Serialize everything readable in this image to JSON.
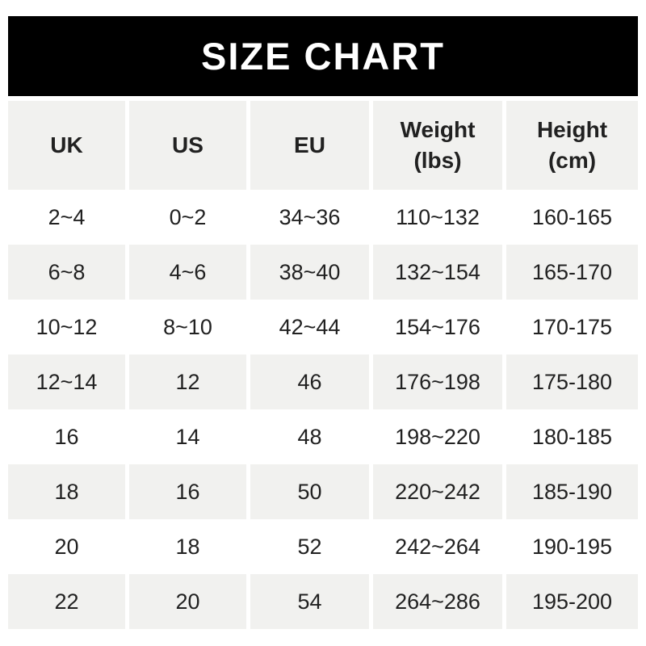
{
  "banner": {
    "title": "SIZE CHART",
    "bg_color": "#000000",
    "text_color": "#ffffff"
  },
  "table": {
    "stripe_color": "#f1f1ef",
    "text_color": "#212121",
    "columns": [
      {
        "key": "uk",
        "label": "UK"
      },
      {
        "key": "us",
        "label": "US"
      },
      {
        "key": "eu",
        "label": "EU"
      },
      {
        "key": "weight",
        "label": "Weight",
        "label2": "(lbs)"
      },
      {
        "key": "height",
        "label": "Height",
        "label2": "(cm)"
      }
    ],
    "rows": [
      [
        "2~4",
        "0~2",
        "34~36",
        "110~132",
        "160-165"
      ],
      [
        "6~8",
        "4~6",
        "38~40",
        "132~154",
        "165-170"
      ],
      [
        "10~12",
        "8~10",
        "42~44",
        "154~176",
        "170-175"
      ],
      [
        "12~14",
        "12",
        "46",
        "176~198",
        "175-180"
      ],
      [
        "16",
        "14",
        "48",
        "198~220",
        "180-185"
      ],
      [
        "18",
        "16",
        "50",
        "220~242",
        "185-190"
      ],
      [
        "20",
        "18",
        "52",
        "242~264",
        "190-195"
      ],
      [
        "22",
        "20",
        "54",
        "264~286",
        "195-200"
      ]
    ]
  },
  "chart_data": {
    "type": "table",
    "title": "SIZE CHART",
    "columns": [
      "UK",
      "US",
      "EU",
      "Weight (lbs)",
      "Height (cm)"
    ],
    "rows": [
      [
        "2~4",
        "0~2",
        "34~36",
        "110~132",
        "160-165"
      ],
      [
        "6~8",
        "4~6",
        "38~40",
        "132~154",
        "165-170"
      ],
      [
        "10~12",
        "8~10",
        "42~44",
        "154~176",
        "170-175"
      ],
      [
        "12~14",
        "12",
        "46",
        "176~198",
        "175-180"
      ],
      [
        "16",
        "14",
        "48",
        "198~220",
        "180-185"
      ],
      [
        "18",
        "16",
        "50",
        "220~242",
        "185-190"
      ],
      [
        "20",
        "18",
        "52",
        "242~264",
        "190-195"
      ],
      [
        "22",
        "20",
        "54",
        "264~286",
        "195-200"
      ]
    ],
    "layout": {
      "header_background": "#f1f1ef",
      "row_stripe_background": "#f1f1ef",
      "banner_background": "#000000",
      "banner_text_color": "#ffffff",
      "text_color": "#212121",
      "stripe_pattern": "rows alternate white then gray, starting white"
    }
  }
}
